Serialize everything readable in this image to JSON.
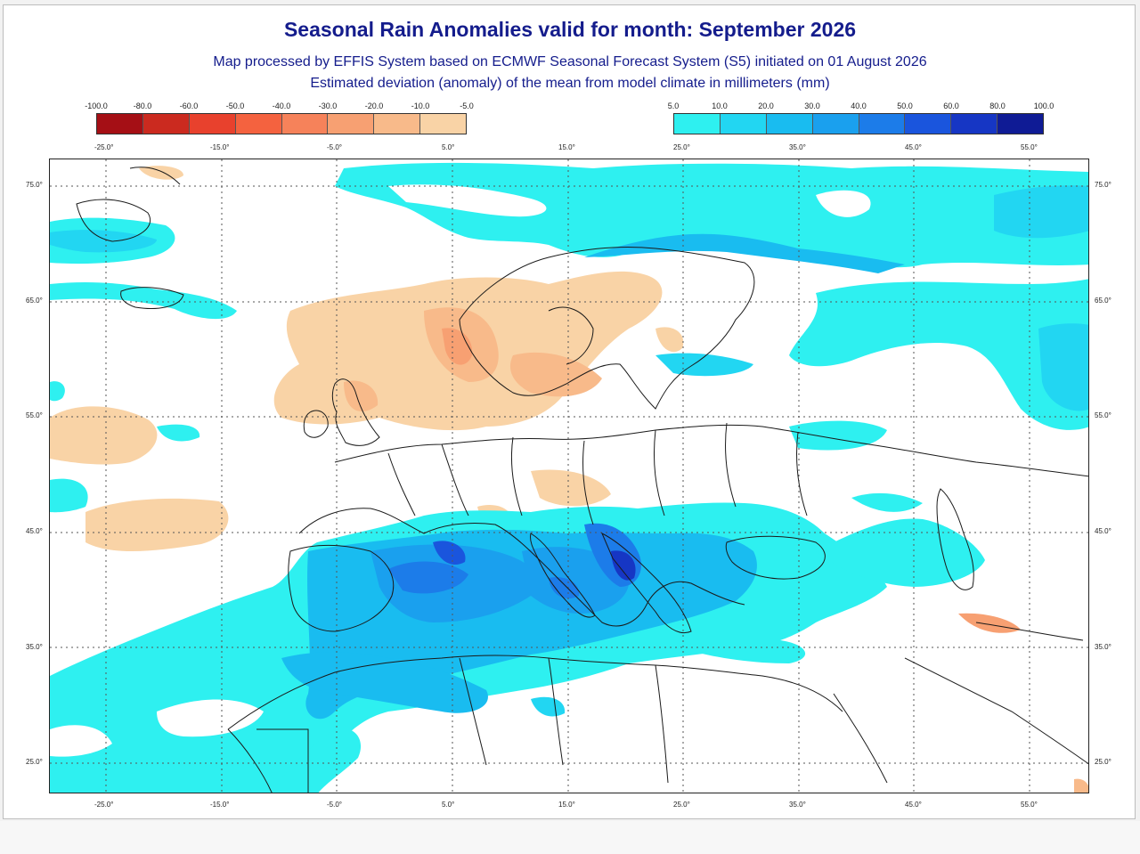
{
  "title": "Seasonal Rain Anomalies valid for month: September 2026",
  "subtitle_line1": "Map processed by EFFIS System based on ECMWF Seasonal Forecast System (S5) initiated on 01 August 2026",
  "subtitle_line2": "Estimated deviation (anomaly) of the mean from model climate in millimeters (mm)",
  "negative_scale": {
    "labels": [
      "-100.0",
      "-80.0",
      "-60.0",
      "-50.0",
      "-40.0",
      "-30.0",
      "-20.0",
      "-10.0",
      "-5.0"
    ],
    "colors": [
      "#a50f15",
      "#cb2a1f",
      "#e8412d",
      "#f4623f",
      "#f6825a",
      "#f7a072",
      "#f8ba8a",
      "#f9d3a6"
    ]
  },
  "positive_scale": {
    "labels": [
      "5.0",
      "10.0",
      "20.0",
      "30.0",
      "40.0",
      "50.0",
      "60.0",
      "80.0",
      "100.0"
    ],
    "colors": [
      "#2ef0f0",
      "#22d6f2",
      "#19bcf0",
      "#1aa0ee",
      "#1c7ce9",
      "#1a55dd",
      "#1636c4",
      "#0f1b95"
    ]
  },
  "longitude_ticks_top_left": [
    "-25.0°",
    "-15.0°",
    "-5.0°",
    "5.0°",
    "15.0°"
  ],
  "longitude_ticks_top_right": [
    "25.0°",
    "35.0°",
    "45.0°",
    "55.0°"
  ],
  "longitude_ticks_bottom": [
    "-25.0°",
    "-15.0°",
    "-5.0°",
    "5.0°",
    "15.0°",
    "25.0°",
    "35.0°",
    "45.0°",
    "55.0°"
  ],
  "latitude_ticks": [
    "75.0°",
    "65.0°",
    "55.0°",
    "45.0°",
    "35.0°",
    "25.0°"
  ],
  "map_legend_range": {
    "longitude_min": -25,
    "longitude_max": 55,
    "latitude_min": 25,
    "latitude_max": 75
  }
}
